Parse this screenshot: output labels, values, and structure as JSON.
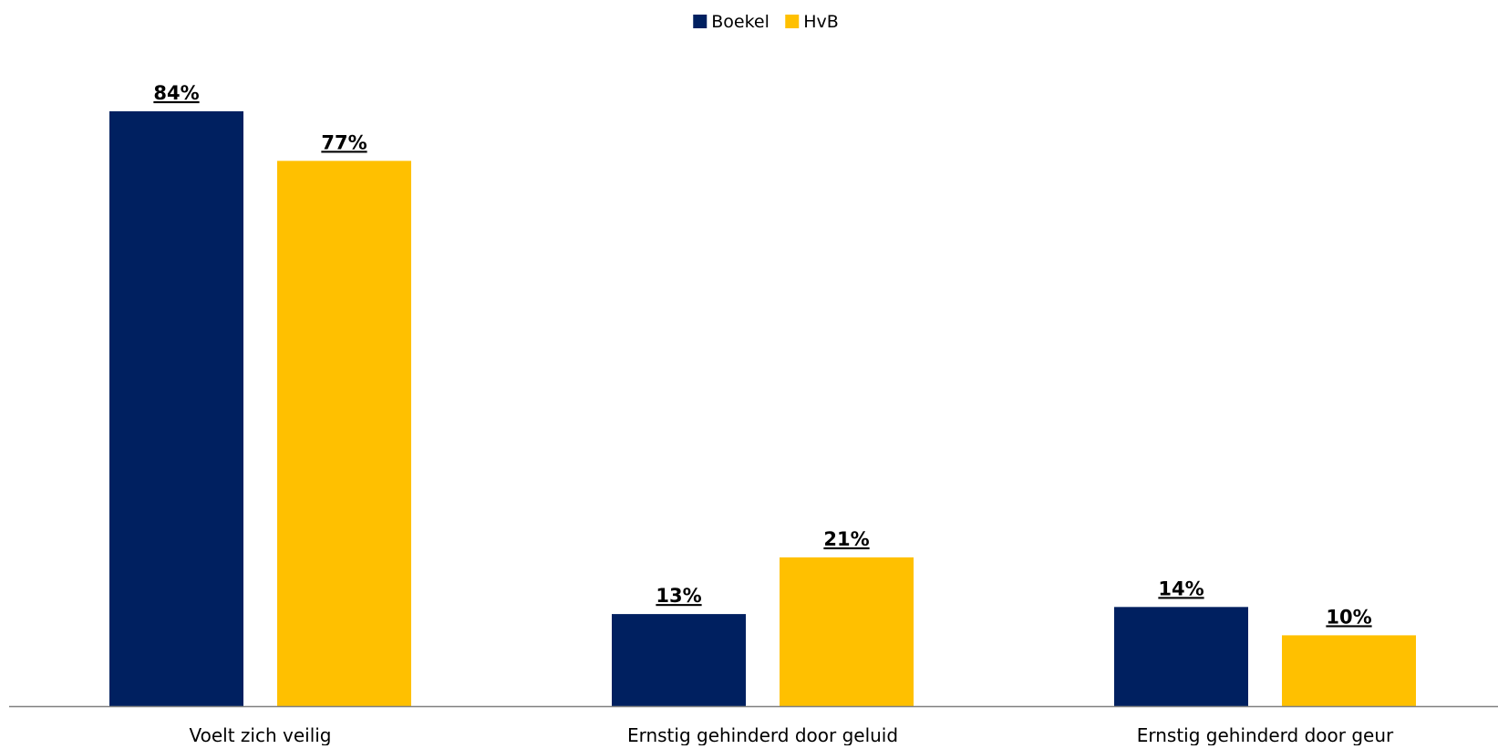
{
  "chart_data": {
    "type": "bar",
    "categories": [
      "Voelt zich veilig",
      "Ernstig gehinderd door geluid",
      "Ernstig gehinderd door geur"
    ],
    "series": [
      {
        "name": "Boekel",
        "values": [
          84,
          13,
          14
        ],
        "labels": [
          "84%",
          "13%",
          "14%"
        ],
        "color": "#002060"
      },
      {
        "name": "HvB",
        "values": [
          77,
          21,
          10
        ],
        "labels": [
          "77%",
          "21%",
          "10%"
        ],
        "color": "#FFC000"
      }
    ],
    "ylim": [
      0,
      84
    ],
    "unit": "%",
    "legend_position": "top-center",
    "grid": false,
    "axis_color": "#808080"
  }
}
